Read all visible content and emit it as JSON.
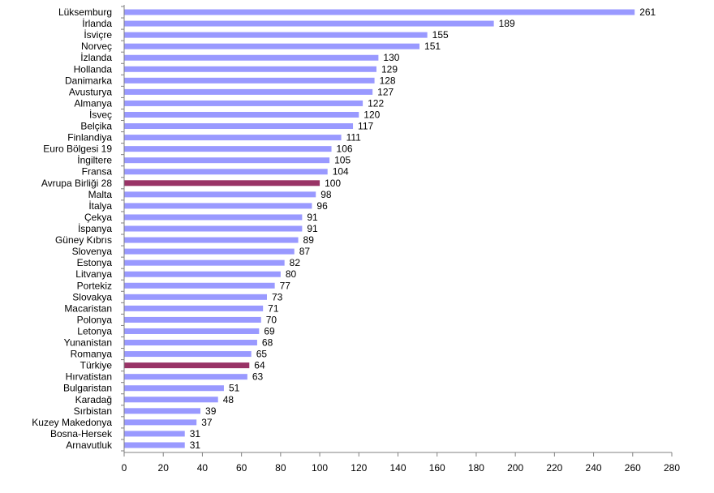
{
  "chart_data": {
    "type": "bar",
    "orientation": "horizontal",
    "title": "",
    "xlabel": "",
    "ylabel": "",
    "xlim": [
      0,
      280
    ],
    "x_ticks": [
      0,
      20,
      40,
      60,
      80,
      100,
      120,
      140,
      160,
      180,
      200,
      220,
      240,
      260,
      280
    ],
    "grid": false,
    "legend": "none",
    "colors": {
      "default_bar": "#9999ff",
      "highlight_bar": "#993366",
      "axis": "#808080",
      "text": "#000000"
    },
    "highlighted_categories": [
      "Avrupa Birliği 28",
      "Türkiye"
    ],
    "categories": [
      "Lüksemburg",
      "İrlanda",
      "İsviçre",
      "Norveç",
      "İzlanda",
      "Hollanda",
      "Danimarka",
      "Avusturya",
      "Almanya",
      "İsveç",
      "Belçika",
      "Finlandiya",
      "Euro Bölgesi 19",
      "İngiltere",
      "Fransa",
      "Avrupa Birliği 28",
      "Malta",
      "İtalya",
      "Çekya",
      "İspanya",
      "Güney Kıbrıs",
      "Slovenya",
      "Estonya",
      "Litvanya",
      "Portekiz",
      "Slovakya",
      "Macaristan",
      "Polonya",
      "Letonya",
      "Yunanistan",
      "Romanya",
      "Türkiye",
      "Hırvatistan",
      "Bulgaristan",
      "Karadağ",
      "Sırbistan",
      "Kuzey Makedonya",
      "Bosna-Hersek",
      "Arnavutluk"
    ],
    "values": [
      261,
      189,
      155,
      151,
      130,
      129,
      128,
      127,
      122,
      120,
      117,
      111,
      106,
      105,
      104,
      100,
      98,
      96,
      91,
      91,
      89,
      87,
      82,
      80,
      77,
      73,
      71,
      70,
      69,
      68,
      65,
      64,
      63,
      51,
      48,
      39,
      37,
      31,
      31
    ]
  }
}
